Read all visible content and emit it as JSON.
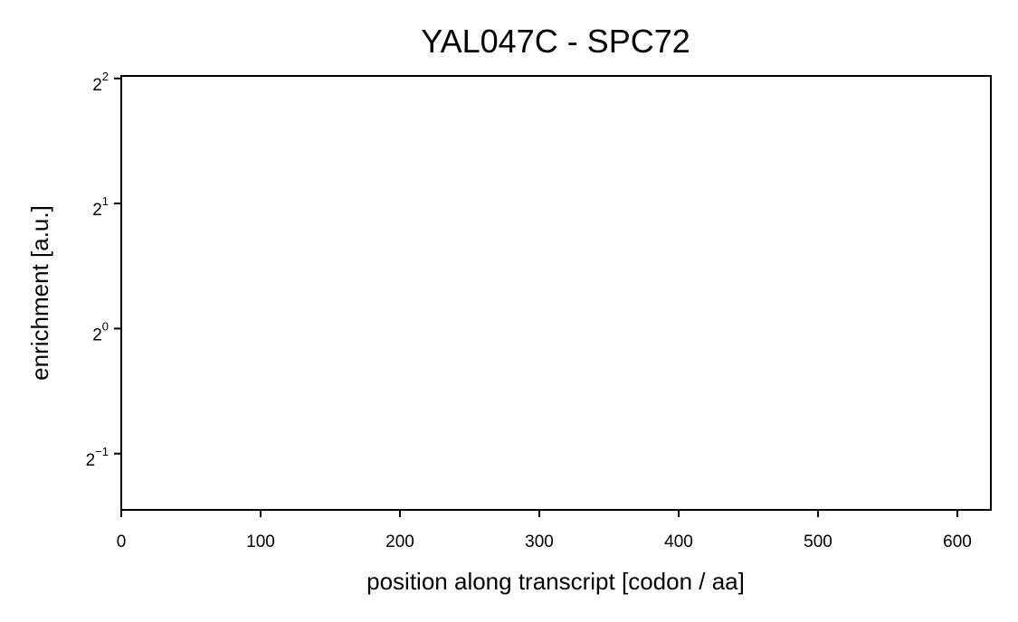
{
  "chart_data": {
    "type": "line",
    "title": "YAL047C - SPC72",
    "xlabel": "position along transcript [codon / aa]",
    "ylabel": "enrichment [a.u.]",
    "xlim": [
      0,
      624
    ],
    "ylim_log2": [
      -1.45,
      2.02
    ],
    "y_scale": "log2",
    "xticks": [
      0,
      100,
      200,
      300,
      400,
      500,
      600
    ],
    "yticks": [
      {
        "base": "2",
        "exponent": "−1",
        "value": 0.5
      },
      {
        "base": "2",
        "exponent": "0",
        "value": 1
      },
      {
        "base": "2",
        "exponent": "1",
        "value": 2
      },
      {
        "base": "2",
        "exponent": "2",
        "value": 4
      }
    ],
    "grid": false,
    "series": []
  }
}
